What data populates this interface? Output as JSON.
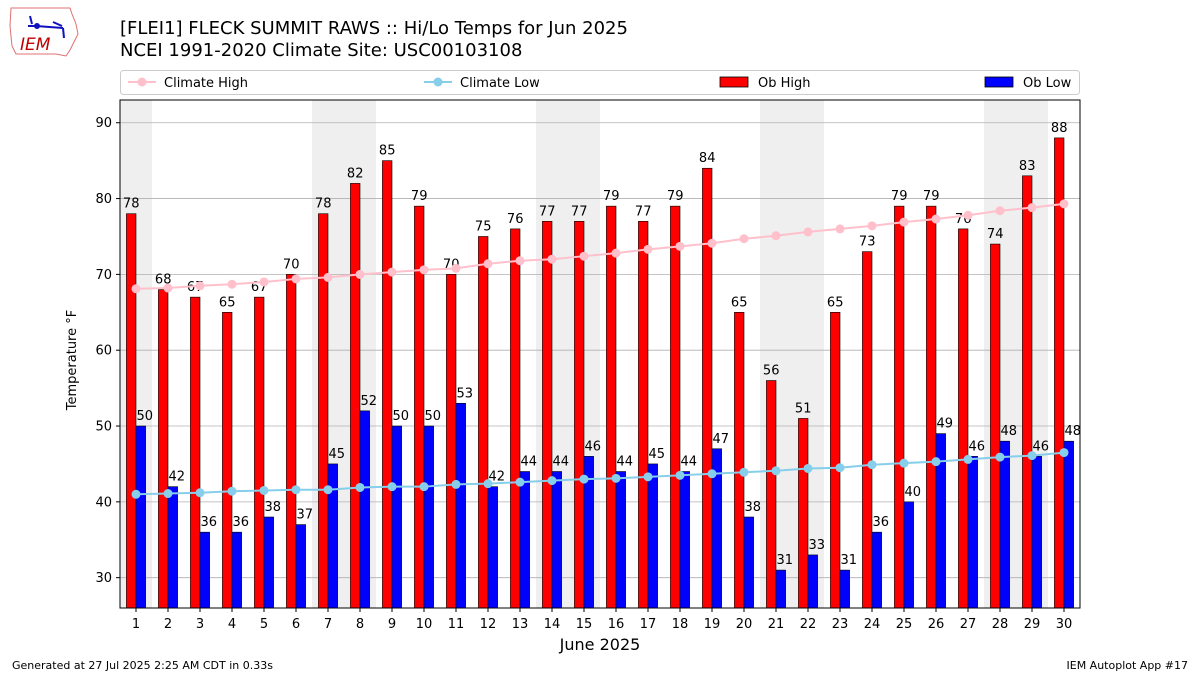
{
  "header": {
    "title_line1": "[FLEI1] FLECK SUMMIT RAWS :: Hi/Lo Temps for Jun 2025",
    "title_line2": "NCEI 1991-2020 Climate Site: USC00103108",
    "logo_text": "IEM"
  },
  "footer": {
    "left": "Generated at 27 Jul 2025 2:25 AM CDT in 0.33s",
    "right": "IEM Autoplot App #17"
  },
  "colors": {
    "ob_high": "#ff0000",
    "ob_low": "#0000ff",
    "climate_high": "#ffc0cb",
    "climate_low": "#87ceeb",
    "weekend": "#efefef"
  },
  "chart_data": {
    "type": "bar",
    "title": "[FLEI1] FLECK SUMMIT RAWS :: Hi/Lo Temps for Jun 2025",
    "xlabel": "June 2025",
    "ylabel": "Temperature °F",
    "xlim": [
      0.5,
      30.5
    ],
    "ylim": [
      26,
      93
    ],
    "yticks": [
      30,
      40,
      50,
      60,
      70,
      80,
      90
    ],
    "grid": true,
    "legend_placement": "top",
    "x": [
      1,
      2,
      3,
      4,
      5,
      6,
      7,
      8,
      9,
      10,
      11,
      12,
      13,
      14,
      15,
      16,
      17,
      18,
      19,
      20,
      21,
      22,
      23,
      24,
      25,
      26,
      27,
      28,
      29,
      30
    ],
    "weekend_days": [
      1,
      7,
      8,
      14,
      15,
      21,
      22,
      28,
      29
    ],
    "series": [
      {
        "name": "Climate High",
        "type": "line",
        "values": [
          68.1,
          68.2,
          68.5,
          68.7,
          69.0,
          69.4,
          69.6,
          70.0,
          70.3,
          70.6,
          70.8,
          71.4,
          71.8,
          72.0,
          72.4,
          72.8,
          73.3,
          73.7,
          74.1,
          74.7,
          75.1,
          75.6,
          76.0,
          76.4,
          76.9,
          77.3,
          77.8,
          78.4,
          78.8,
          79.3
        ]
      },
      {
        "name": "Climate Low",
        "type": "line",
        "values": [
          41.0,
          41.1,
          41.2,
          41.4,
          41.5,
          41.6,
          41.6,
          41.9,
          42.0,
          42.0,
          42.3,
          42.4,
          42.6,
          42.8,
          43.0,
          43.1,
          43.3,
          43.5,
          43.7,
          43.9,
          44.1,
          44.4,
          44.5,
          44.9,
          45.1,
          45.3,
          45.6,
          45.9,
          46.1,
          46.5
        ]
      },
      {
        "name": "Ob High",
        "type": "bar",
        "values": [
          78,
          68,
          67,
          65,
          67,
          70,
          78,
          82,
          85,
          79,
          70,
          75,
          76,
          77,
          77,
          79,
          77,
          79,
          84,
          65,
          56,
          51,
          65,
          73,
          79,
          79,
          76,
          74,
          83,
          88
        ]
      },
      {
        "name": "Ob Low",
        "type": "bar",
        "values": [
          50,
          42,
          36,
          36,
          38,
          37,
          45,
          52,
          50,
          50,
          53,
          42,
          44,
          44,
          46,
          44,
          45,
          44,
          47,
          38,
          31,
          33,
          31,
          36,
          40,
          49,
          46,
          48,
          46,
          48
        ]
      }
    ]
  }
}
